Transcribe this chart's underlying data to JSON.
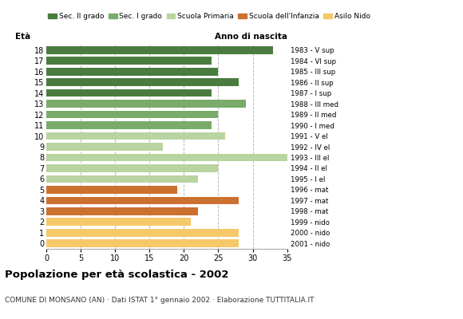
{
  "ages": [
    18,
    17,
    16,
    15,
    14,
    13,
    12,
    11,
    10,
    9,
    8,
    7,
    6,
    5,
    4,
    3,
    2,
    1,
    0
  ],
  "values": [
    33,
    24,
    25,
    28,
    24,
    29,
    25,
    24,
    26,
    17,
    35,
    25,
    22,
    19,
    28,
    22,
    21,
    28,
    28
  ],
  "right_labels": [
    "1983 - V sup",
    "1984 - VI sup",
    "1985 - III sup",
    "1986 - II sup",
    "1987 - I sup",
    "1988 - III med",
    "1989 - II med",
    "1990 - I med",
    "1991 - V el",
    "1992 - IV el",
    "1993 - III el",
    "1994 - II el",
    "1995 - I el",
    "1996 - mat",
    "1997 - mat",
    "1998 - mat",
    "1999 - nido",
    "2000 - nido",
    "2001 - nido"
  ],
  "colors": [
    "#4a7c3f",
    "#4a7c3f",
    "#4a7c3f",
    "#4a7c3f",
    "#4a7c3f",
    "#7aab6a",
    "#7aab6a",
    "#7aab6a",
    "#b8d4a0",
    "#b8d4a0",
    "#b8d4a0",
    "#b8d4a0",
    "#b8d4a0",
    "#cc7030",
    "#cc7030",
    "#cc7030",
    "#f5c96a",
    "#f5c96a",
    "#f5c96a"
  ],
  "legend_labels": [
    "Sec. II grado",
    "Sec. I grado",
    "Scuola Primaria",
    "Scuola dell'Infanzia",
    "Asilo Nido"
  ],
  "legend_colors": [
    "#4a7c3f",
    "#7aab6a",
    "#b8d4a0",
    "#cc7030",
    "#f5c96a"
  ],
  "title": "Popolazione per età scolastica - 2002",
  "subtitle": "COMUNE DI MONSANO (AN) · Dati ISTAT 1° gennaio 2002 · Elaborazione TUTTITALIA.IT",
  "xlabel_left": "Età",
  "xlabel_right": "Anno di nascita",
  "xlim": [
    0,
    35
  ],
  "xticks": [
    0,
    5,
    10,
    15,
    20,
    25,
    30,
    35
  ],
  "background_color": "#ffffff",
  "grid_color": "#bbbbbb"
}
